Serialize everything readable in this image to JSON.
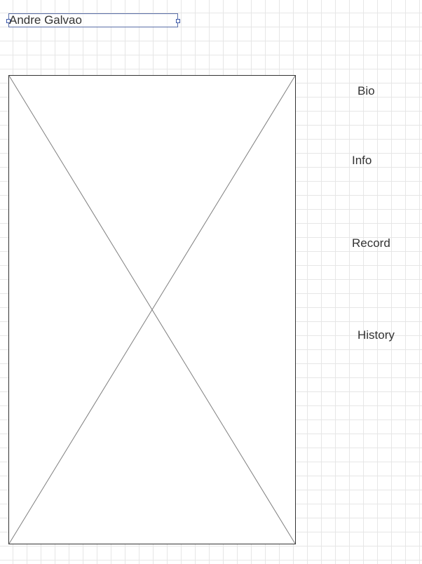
{
  "title": "Andre Galvao",
  "image_placeholder": "image-placeholder",
  "nav": {
    "bio": "Bio",
    "info": "Info",
    "record": "Record",
    "history": "History"
  },
  "colors": {
    "grid": "#e6e6e6",
    "selection": "#3a57a8",
    "stroke": "#333333",
    "diagonal": "#808080"
  }
}
